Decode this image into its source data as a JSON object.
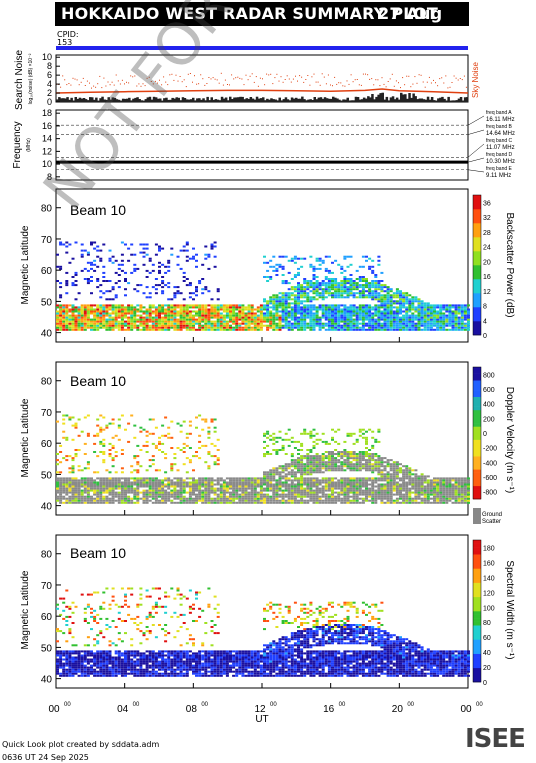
{
  "header": {
    "title": "HOKKAIDO WEST RADAR SUMMARY PLOT",
    "date": "27 Aug 2025",
    "cpid_label": "CPID:",
    "cpid_value": "153"
  },
  "colors": {
    "cpid_bar": "#2222ee",
    "noise": "#e04010",
    "watermark": "#555555"
  },
  "panels": {
    "noise": {
      "ylabel": "Search Noise",
      "unit": "log₁₀(noise) (dB) ×10⁻²",
      "right_label": "Sky Noise",
      "ticks": [
        "0",
        "2",
        "4",
        "6",
        "8",
        "10"
      ]
    },
    "frequency": {
      "ylabel": "Frequency",
      "unit": "(MHz)",
      "ticks": [
        "8",
        "10",
        "12",
        "14",
        "16",
        "18"
      ],
      "bands": [
        {
          "name": "freq band A",
          "freq": "16.11 MHz"
        },
        {
          "name": "freq band B",
          "freq": "14.64 MHz"
        },
        {
          "name": "freq band C",
          "freq": "11.07 MHz"
        },
        {
          "name": "freq band D",
          "freq": "10.30 MHz"
        },
        {
          "name": "freq band E",
          "freq": "9.11 MHz"
        }
      ]
    },
    "power": {
      "beam": "Beam 10",
      "ylabel": "Magnetic Latitude",
      "cbar_label": "Backscatter Power (dB)",
      "cbar_ticks": [
        "0",
        "4",
        "8",
        "12",
        "16",
        "20",
        "24",
        "28",
        "32",
        "36"
      ]
    },
    "velocity": {
      "beam": "Beam 10",
      "ylabel": "Magnetic Latitude",
      "cbar_label": "Doppler Velocity (m s⁻¹)",
      "cbar_ticks": [
        "-800",
        "-600",
        "-400",
        "-200",
        "0",
        "200",
        "400",
        "600",
        "800"
      ],
      "ground_label": "Ground",
      "ground_label2": "Scatter"
    },
    "width": {
      "beam": "Beam 10",
      "ylabel": "Magnetic Latitude",
      "cbar_label": "Spectral Width (m s⁻¹)",
      "cbar_ticks": [
        "0",
        "20",
        "40",
        "60",
        "80",
        "100",
        "120",
        "140",
        "160",
        "180"
      ]
    }
  },
  "xaxis": {
    "label": "UT",
    "ticks": [
      "00",
      "04",
      "08",
      "12",
      "16",
      "20",
      "00"
    ],
    "tick_sup": "00"
  },
  "footer": {
    "line1": "Quick Look plot created by sddata.adm",
    "line2": "0636 UT 24 Sep 2025"
  },
  "watermark": "NOT FOR PUBLICATION",
  "logo": "ISEE",
  "chart_data": [
    {
      "type": "line",
      "title": "Search Noise",
      "xlabel": "",
      "ylabel": "Search Noise",
      "x_hours": [
        0,
        2,
        4,
        6,
        8,
        10,
        12,
        14,
        16,
        18,
        19,
        20,
        22,
        24
      ],
      "series": [
        {
          "name": "Sky Noise",
          "values": [
            2.0,
            2.2,
            2.3,
            2.4,
            2.5,
            2.6,
            2.6,
            2.5,
            2.4,
            2.6,
            2.9,
            2.5,
            2.3,
            2.0
          ]
        }
      ],
      "ylim": [
        0,
        10
      ]
    },
    {
      "type": "line",
      "title": "Frequency",
      "ylabel": "Frequency",
      "ylim": [
        8,
        18
      ],
      "series": [
        {
          "name": "freq band D",
          "values": [
            10.3,
            10.3
          ]
        }
      ]
    },
    {
      "type": "heatmap",
      "title": "Beam 10 Backscatter Power",
      "xlabel": "UT",
      "ylabel": "Magnetic Latitude",
      "xlim": [
        0,
        24
      ],
      "ylim": [
        37,
        86
      ],
      "colorbar": {
        "label": "Backscatter Power (dB)",
        "range": [
          0,
          38
        ]
      },
      "features": [
        {
          "region": "low-latitude band",
          "lat_range": [
            42,
            47
          ],
          "ut_range": [
            0,
            13
          ],
          "typical_value": 26
        },
        {
          "region": "arc",
          "lat_center_ut": [
            [
              12,
              47
            ],
            [
              14,
              52
            ],
            [
              16,
              54
            ],
            [
              18,
              54
            ],
            [
              20,
              50
            ],
            [
              22,
              45
            ],
            [
              24,
              44
            ]
          ],
          "typical_value": 12
        },
        {
          "region": "high-latitude sparse",
          "lat_range": [
            55,
            69
          ],
          "ut_range": [
            0,
            9
          ],
          "typical_value": 4
        }
      ]
    },
    {
      "type": "heatmap",
      "title": "Beam 10 Doppler Velocity",
      "xlabel": "UT",
      "ylabel": "Magnetic Latitude",
      "xlim": [
        0,
        24
      ],
      "ylim": [
        37,
        86
      ],
      "colorbar": {
        "label": "Doppler Velocity (m s⁻¹)",
        "range": [
          -900,
          900
        ]
      },
      "features": [
        {
          "region": "ground scatter band",
          "lat_range": [
            42,
            50
          ],
          "ut_range": [
            0,
            24
          ]
        },
        {
          "region": "high-latitude sparse",
          "lat_range": [
            55,
            69
          ],
          "ut_range": [
            0,
            9
          ],
          "typical_value": -300
        }
      ]
    },
    {
      "type": "heatmap",
      "title": "Beam 10 Spectral Width",
      "xlabel": "UT",
      "ylabel": "Magnetic Latitude",
      "xlim": [
        0,
        24
      ],
      "ylim": [
        37,
        86
      ],
      "colorbar": {
        "label": "Spectral Width (m s⁻¹)",
        "range": [
          0,
          190
        ]
      },
      "features": [
        {
          "region": "low-latitude band",
          "lat_range": [
            41,
            48
          ],
          "ut_range": [
            0,
            24
          ],
          "typical_value": 10
        },
        {
          "region": "high-latitude sparse",
          "lat_range": [
            55,
            69
          ],
          "ut_range": [
            0,
            9
          ],
          "typical_value": 120
        }
      ]
    }
  ]
}
